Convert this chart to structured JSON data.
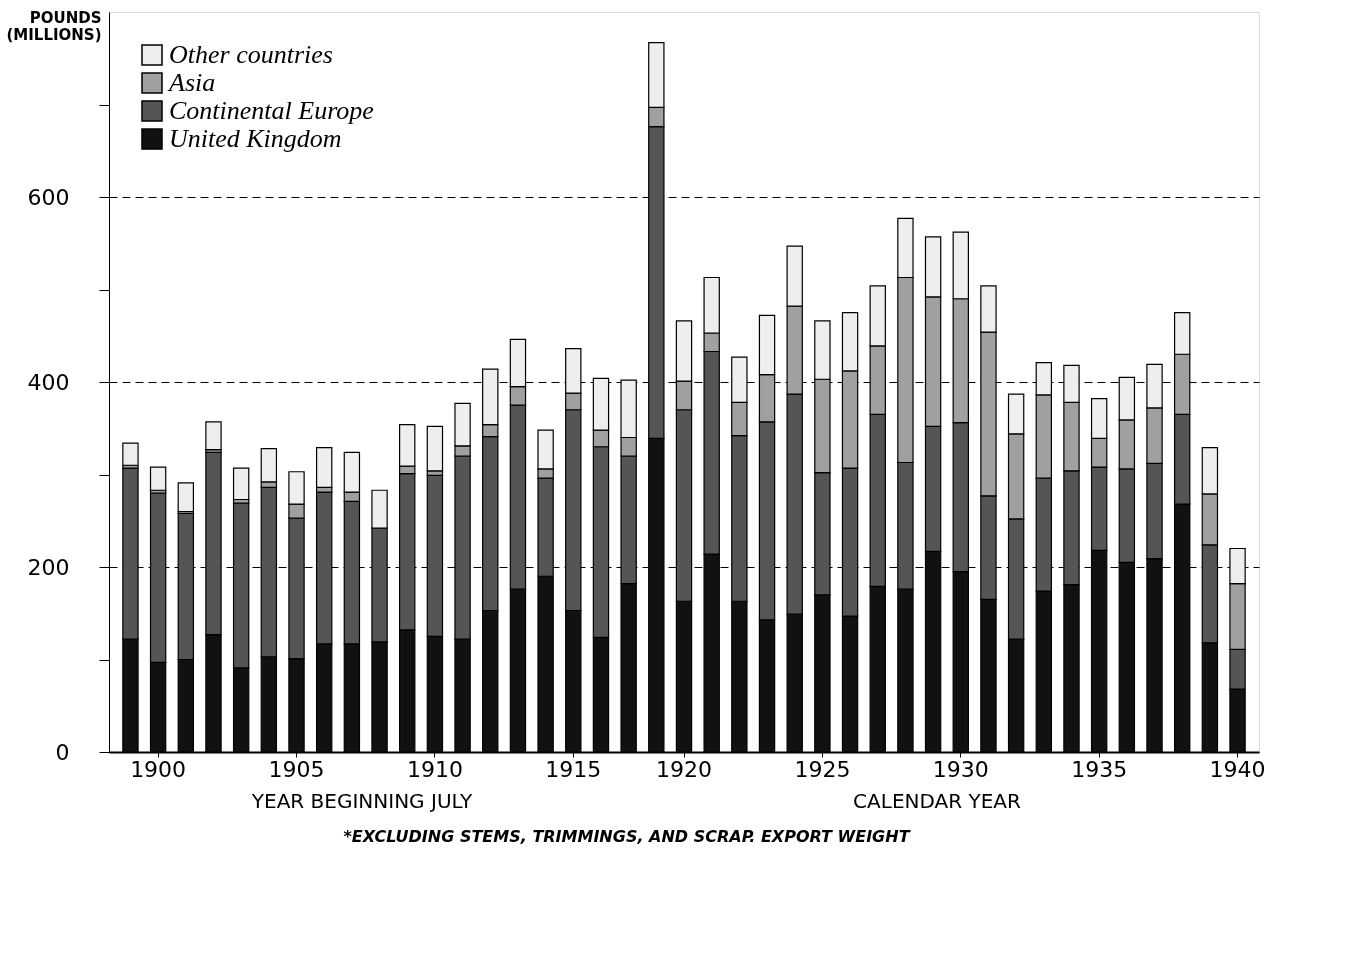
{
  "chart_data": {
    "type": "bar",
    "stacked": true,
    "ylabel": "POUNDS (MILLIONS)",
    "categories": [
      null,
      "1900",
      null,
      null,
      null,
      null,
      "1905",
      null,
      null,
      null,
      null,
      "1910",
      null,
      null,
      null,
      null,
      "1915",
      null,
      null,
      null,
      "1920",
      null,
      null,
      null,
      null,
      "1925",
      null,
      null,
      null,
      null,
      "1930",
      null,
      null,
      null,
      null,
      "1935",
      null,
      null,
      null,
      null,
      "1940"
    ],
    "series": [
      {
        "name": "United Kingdom",
        "color": "#111111",
        "values": [
          122,
          97,
          100,
          127,
          91,
          103,
          101,
          117,
          117,
          119,
          132,
          125,
          122,
          153,
          176,
          190,
          153,
          124,
          182,
          339,
          163,
          214,
          163,
          143,
          149,
          170,
          147,
          179,
          176,
          217,
          195,
          165,
          122,
          174,
          181,
          218,
          205,
          209,
          268,
          118,
          68
        ]
      },
      {
        "name": "Continental Europe",
        "color": "#555555",
        "values": [
          185,
          183,
          158,
          197,
          178,
          183,
          152,
          164,
          154,
          123,
          169,
          174,
          198,
          188,
          199,
          106,
          217,
          206,
          138,
          337,
          207,
          219,
          179,
          214,
          238,
          132,
          160,
          186,
          137,
          135,
          161,
          112,
          130,
          122,
          123,
          90,
          101,
          103,
          97,
          106,
          43
        ]
      },
      {
        "name": "Asia",
        "color": "#a0a0a0",
        "values": [
          3,
          3,
          2,
          3,
          4,
          6,
          15,
          5,
          10,
          null,
          8,
          5,
          11,
          13,
          20,
          10,
          18,
          18,
          20,
          21,
          31,
          20,
          36,
          51,
          95,
          101,
          105,
          74,
          200,
          140,
          134,
          177,
          92,
          90,
          74,
          31,
          53,
          60,
          65,
          55,
          71
        ]
      },
      {
        "name": "Other countries",
        "color": "#eeeeee",
        "values": [
          24,
          25,
          31,
          30,
          34,
          36,
          35,
          43,
          43,
          41,
          45,
          48,
          46,
          60,
          51,
          42,
          48,
          56,
          62,
          70,
          65,
          60,
          49,
          64,
          65,
          63,
          63,
          65,
          64,
          65,
          72,
          50,
          43,
          35,
          40,
          43,
          46,
          47,
          45,
          50,
          38
        ]
      }
    ],
    "ylim": [
      0,
      800
    ],
    "yticks": [
      0,
      {
        "value": 100,
        "label": null
      },
      200,
      {
        "value": 300,
        "label": null
      },
      400,
      {
        "value": 500,
        "label": null
      },
      600,
      {
        "value": 700,
        "label": null
      }
    ],
    "grid": "y",
    "legend": "top left",
    "annotations": [
      "YEAR BEGINNING JULY",
      "CALENDAR YEAR",
      "*EXCLUDING STEMS, TRIMMINGS, AND SCRAP. EXPORT WEIGHT"
    ]
  }
}
